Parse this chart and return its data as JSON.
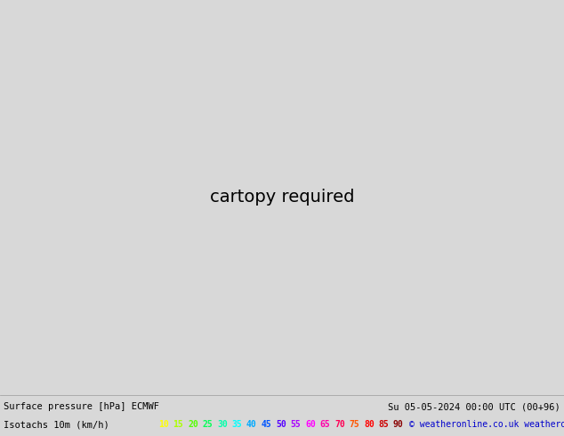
{
  "title_left": "Surface pressure [hPa] ECMWF",
  "title_right": "Su 05-05-2024 00:00 UTC (00+96)",
  "legend_label": "Isotachs 10m (km/h)",
  "copyright": "© weatheronline.co.uk",
  "legend_values": [
    10,
    15,
    20,
    25,
    30,
    35,
    40,
    45,
    50,
    55,
    60,
    65,
    70,
    75,
    80,
    85,
    90
  ],
  "legend_colors": [
    "#ffff00",
    "#aaff00",
    "#55ff00",
    "#00ff55",
    "#00ffaa",
    "#00ffff",
    "#00aaff",
    "#0055ff",
    "#5500ff",
    "#aa00ff",
    "#ff00ff",
    "#ff00aa",
    "#ff0055",
    "#ff5500",
    "#ff0000",
    "#cc0000",
    "#880000"
  ],
  "bg_color": "#d8d8d8",
  "land_green": "#b8f0b8",
  "sea_color": "#d8d8d8",
  "bottom_bg": "#e8e8e8",
  "yellow_contour": "#cccc00",
  "ltgreen_contour": "#88cc44",
  "green_contour": "#22aa22",
  "black_contour": "#000000",
  "map_extent": [
    -11.5,
    4.5,
    48.5,
    61.5
  ],
  "figsize": [
    6.34,
    4.9
  ],
  "dpi": 100
}
